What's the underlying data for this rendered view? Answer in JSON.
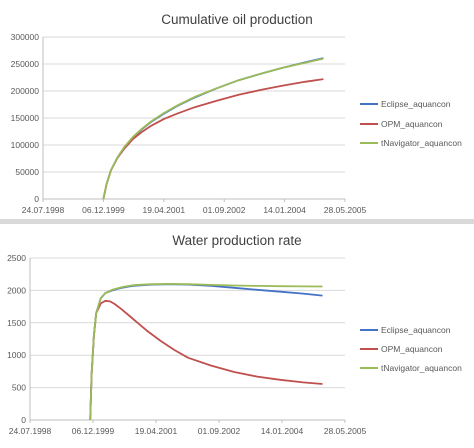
{
  "chart_data": [
    {
      "type": "line",
      "title": "Cumulative oil production",
      "xlabel": "",
      "ylabel": "",
      "x_ticks": [
        "24.07.1998",
        "06.12.1999",
        "19.04.2001",
        "01.09.2002",
        "14.01.2004",
        "28.05.2005"
      ],
      "y_ticks": [
        "0",
        "50000",
        "100000",
        "150000",
        "200000",
        "250000",
        "300000"
      ],
      "ylim": [
        0,
        300000
      ],
      "x_range_years": [
        1998.56,
        2005.41
      ],
      "grid": "horizontal",
      "legend_position": "right",
      "series": [
        {
          "name": "Eclipse_aquancon",
          "color": "#4472c4",
          "x": [
            1999.93,
            2000.0,
            2000.1,
            2000.25,
            2000.4,
            2000.6,
            2000.8,
            2001.0,
            2001.3,
            2001.6,
            2002.0,
            2002.5,
            2003.0,
            2003.5,
            2004.0,
            2004.5,
            2004.92
          ],
          "y": [
            0,
            27000,
            53000,
            77000,
            95000,
            114000,
            129000,
            142000,
            158000,
            172000,
            188000,
            205000,
            220000,
            232000,
            243000,
            253000,
            261000
          ]
        },
        {
          "name": "OPM_aquancon",
          "color": "#c0504d",
          "x": [
            1999.93,
            2000.0,
            2000.1,
            2000.25,
            2000.4,
            2000.6,
            2000.8,
            2001.0,
            2001.3,
            2001.6,
            2002.0,
            2002.5,
            2003.0,
            2003.5,
            2004.0,
            2004.5,
            2004.92
          ],
          "y": [
            0,
            27000,
            53000,
            76000,
            93000,
            111000,
            124000,
            135000,
            148000,
            158000,
            170000,
            182000,
            193000,
            202000,
            210000,
            217000,
            222000
          ]
        },
        {
          "name": "tNavigator_aquancon",
          "color": "#9bbb59",
          "x": [
            1999.93,
            2000.0,
            2000.1,
            2000.25,
            2000.4,
            2000.6,
            2000.8,
            2001.0,
            2001.3,
            2001.6,
            2002.0,
            2002.5,
            2003.0,
            2003.5,
            2004.0,
            2004.5,
            2004.92
          ],
          "y": [
            0,
            27000,
            53000,
            77000,
            96000,
            115000,
            130000,
            143000,
            159000,
            173000,
            189000,
            205000,
            220000,
            232000,
            243000,
            252000,
            260000
          ]
        }
      ]
    },
    {
      "type": "line",
      "title": "Water production rate",
      "xlabel": "",
      "ylabel": "",
      "x_ticks": [
        "24.07.1998",
        "06.12.1999",
        "19.04.2001",
        "01.09.2002",
        "14.01.2004",
        "28.05.2005"
      ],
      "y_ticks": [
        "0",
        "500",
        "1000",
        "1500",
        "2000",
        "2500"
      ],
      "ylim": [
        0,
        2500
      ],
      "x_range_years": [
        1998.56,
        2005.41
      ],
      "grid": "horizontal",
      "legend_position": "right",
      "series": [
        {
          "name": "Eclipse_aquancon",
          "color": "#4472c4",
          "x": [
            1999.87,
            1999.9,
            1999.95,
            2000.0,
            2000.1,
            2000.2,
            2000.35,
            2000.55,
            2000.8,
            2001.2,
            2001.6,
            2002.0,
            2002.5,
            2003.0,
            2003.5,
            2004.0,
            2004.5,
            2004.92
          ],
          "y": [
            0,
            700,
            1300,
            1650,
            1880,
            1960,
            2000,
            2040,
            2070,
            2090,
            2095,
            2090,
            2070,
            2040,
            2010,
            1980,
            1950,
            1920
          ]
        },
        {
          "name": "OPM_aquancon",
          "color": "#c0504d",
          "x": [
            1999.87,
            1999.9,
            1999.95,
            2000.0,
            2000.1,
            2000.2,
            2000.3,
            2000.4,
            2000.55,
            2000.7,
            2000.9,
            2001.1,
            2001.4,
            2001.7,
            2002.0,
            2002.5,
            2003.0,
            2003.5,
            2004.0,
            2004.5,
            2004.92
          ],
          "y": [
            0,
            700,
            1300,
            1650,
            1800,
            1840,
            1830,
            1790,
            1710,
            1620,
            1500,
            1380,
            1220,
            1080,
            960,
            840,
            740,
            670,
            620,
            580,
            555
          ]
        },
        {
          "name": "tNavigator_aquancon",
          "color": "#9bbb59",
          "x": [
            1999.87,
            1999.9,
            1999.95,
            2000.0,
            2000.1,
            2000.2,
            2000.35,
            2000.55,
            2000.8,
            2001.2,
            2001.6,
            2002.0,
            2002.5,
            2003.0,
            2003.5,
            2004.0,
            2004.5,
            2004.92
          ],
          "y": [
            0,
            700,
            1300,
            1650,
            1880,
            1960,
            2010,
            2050,
            2080,
            2095,
            2100,
            2095,
            2085,
            2075,
            2070,
            2065,
            2062,
            2060
          ]
        }
      ]
    }
  ]
}
